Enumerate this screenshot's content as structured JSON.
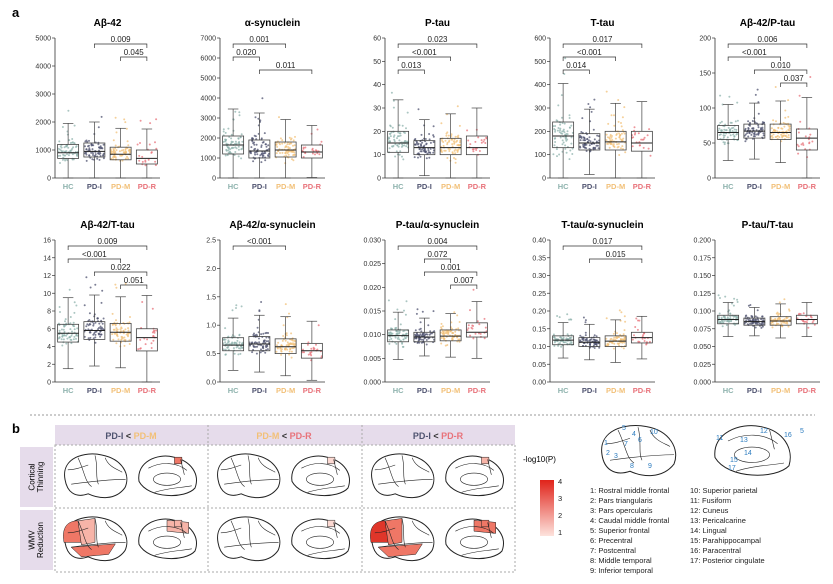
{
  "panel_labels": {
    "a": "a",
    "b": "b"
  },
  "groups": [
    "HC",
    "PD-I",
    "PD-M",
    "PD-R"
  ],
  "colors": {
    "HC": "#8fb3ae",
    "PD-I": "#4f5370",
    "PD-M": "#f2c078",
    "PD-R": "#e8727a"
  },
  "chart_data": [
    {
      "type": "box",
      "title": "Aβ-42",
      "ylim": [
        0,
        5000
      ],
      "ticks": [
        "0",
        "1000",
        "2000",
        "3000",
        "4000",
        "5000"
      ],
      "series": [
        {
          "name": "HC",
          "median": 900,
          "q1": 700,
          "q3": 1200
        },
        {
          "name": "PD-I",
          "median": 950,
          "q1": 750,
          "q3": 1250
        },
        {
          "name": "PD-M",
          "median": 850,
          "q1": 650,
          "q3": 1100
        },
        {
          "name": "PD-R",
          "median": 700,
          "q1": 500,
          "q3": 1000
        }
      ],
      "sig": [
        {
          "label": "0.009",
          "from": 1,
          "to": 3
        },
        {
          "label": "0.045",
          "from": 2,
          "to": 3
        }
      ]
    },
    {
      "type": "box",
      "title": "α-synuclein",
      "ylim": [
        0,
        7000
      ],
      "ticks": [
        "0",
        "1000",
        "2000",
        "3000",
        "4000",
        "5000",
        "6000",
        "7000"
      ],
      "series": [
        {
          "name": "HC",
          "median": 1650,
          "q1": 1200,
          "q3": 2100
        },
        {
          "name": "PD-I",
          "median": 1350,
          "q1": 1000,
          "q3": 1900
        },
        {
          "name": "PD-M",
          "median": 1400,
          "q1": 1050,
          "q3": 1800
        },
        {
          "name": "PD-R",
          "median": 1300,
          "q1": 1000,
          "q3": 1650
        }
      ],
      "sig": [
        {
          "label": "0.001",
          "from": 0,
          "to": 2
        },
        {
          "label": "0.020",
          "from": 0,
          "to": 1
        },
        {
          "label": "0.011",
          "from": 1,
          "to": 3
        }
      ]
    },
    {
      "type": "box",
      "title": "P-tau",
      "ylim": [
        0,
        60
      ],
      "ticks": [
        "0",
        "10",
        "20",
        "30",
        "40",
        "50",
        "60"
      ],
      "series": [
        {
          "name": "HC",
          "median": 15,
          "q1": 11,
          "q3": 20
        },
        {
          "name": "PD-I",
          "median": 13,
          "q1": 10,
          "q3": 16
        },
        {
          "name": "PD-M",
          "median": 13,
          "q1": 10,
          "q3": 17
        },
        {
          "name": "PD-R",
          "median": 13,
          "q1": 10,
          "q3": 18
        }
      ],
      "sig": [
        {
          "label": "0.023",
          "from": 0,
          "to": 3
        },
        {
          "label": "<0.001",
          "from": 0,
          "to": 2
        },
        {
          "label": "0.013",
          "from": 0,
          "to": 1
        }
      ]
    },
    {
      "type": "box",
      "title": "T-tau",
      "ylim": [
        0,
        600
      ],
      "ticks": [
        "0",
        "100",
        "200",
        "300",
        "400",
        "500",
        "600"
      ],
      "series": [
        {
          "name": "HC",
          "median": 180,
          "q1": 130,
          "q3": 240
        },
        {
          "name": "PD-I",
          "median": 150,
          "q1": 120,
          "q3": 190
        },
        {
          "name": "PD-M",
          "median": 155,
          "q1": 120,
          "q3": 200
        },
        {
          "name": "PD-R",
          "median": 150,
          "q1": 115,
          "q3": 200
        }
      ],
      "sig": [
        {
          "label": "0.017",
          "from": 0,
          "to": 3
        },
        {
          "label": "<0.001",
          "from": 0,
          "to": 2
        },
        {
          "label": "0.014",
          "from": 0,
          "to": 1
        }
      ]
    },
    {
      "type": "box",
      "title": "Aβ-42/P-tau",
      "ylim": [
        0,
        200
      ],
      "ticks": [
        "0",
        "50",
        "100",
        "150",
        "200"
      ],
      "series": [
        {
          "name": "HC",
          "median": 65,
          "q1": 55,
          "q3": 75
        },
        {
          "name": "PD-I",
          "median": 67,
          "q1": 57,
          "q3": 77
        },
        {
          "name": "PD-M",
          "median": 65,
          "q1": 55,
          "q3": 77
        },
        {
          "name": "PD-R",
          "median": 57,
          "q1": 40,
          "q3": 70
        }
      ],
      "sig": [
        {
          "label": "0.006",
          "from": 0,
          "to": 3
        },
        {
          "label": "<0.001",
          "from": 0,
          "to": 2
        },
        {
          "label": "0.010",
          "from": 1,
          "to": 3
        },
        {
          "label": "0.037",
          "from": 2,
          "to": 3
        }
      ]
    },
    {
      "type": "box",
      "title": "Aβ-42/T-tau",
      "ylim": [
        0,
        16
      ],
      "ticks": [
        "0",
        "2",
        "4",
        "6",
        "8",
        "10",
        "12",
        "14",
        "16"
      ],
      "series": [
        {
          "name": "HC",
          "median": 5.5,
          "q1": 4.5,
          "q3": 6.5
        },
        {
          "name": "PD-I",
          "median": 5.8,
          "q1": 4.8,
          "q3": 6.8
        },
        {
          "name": "PD-M",
          "median": 5.6,
          "q1": 4.6,
          "q3": 6.6
        },
        {
          "name": "PD-R",
          "median": 5.0,
          "q1": 3.5,
          "q3": 6.0
        }
      ],
      "sig": [
        {
          "label": "0.009",
          "from": 0,
          "to": 3
        },
        {
          "label": "<0.001",
          "from": 0,
          "to": 2
        },
        {
          "label": "0.022",
          "from": 1,
          "to": 3
        },
        {
          "label": "0.051",
          "from": 2,
          "to": 3
        }
      ]
    },
    {
      "type": "box",
      "title": "Aβ-42/α-synuclein",
      "ylim": [
        0,
        2.5
      ],
      "ticks": [
        "0.0",
        "0.5",
        "1.0",
        "1.5",
        "2.0",
        "2.5"
      ],
      "series": [
        {
          "name": "HC",
          "median": 0.65,
          "q1": 0.55,
          "q3": 0.78
        },
        {
          "name": "PD-I",
          "median": 0.67,
          "q1": 0.55,
          "q3": 0.8
        },
        {
          "name": "PD-M",
          "median": 0.62,
          "q1": 0.5,
          "q3": 0.76
        },
        {
          "name": "PD-R",
          "median": 0.55,
          "q1": 0.42,
          "q3": 0.68
        }
      ],
      "sig": [
        {
          "label": "<0.001",
          "from": 0,
          "to": 2
        }
      ]
    },
    {
      "type": "box",
      "title": "P-tau/α-synuclein",
      "ylim": [
        0,
        0.03
      ],
      "ticks": [
        "0.000",
        "0.005",
        "0.010",
        "0.015",
        "0.020",
        "0.025",
        "0.030"
      ],
      "series": [
        {
          "name": "HC",
          "median": 0.0098,
          "q1": 0.0085,
          "q3": 0.011
        },
        {
          "name": "PD-I",
          "median": 0.0095,
          "q1": 0.0085,
          "q3": 0.0105
        },
        {
          "name": "PD-M",
          "median": 0.0097,
          "q1": 0.0087,
          "q3": 0.011
        },
        {
          "name": "PD-R",
          "median": 0.0105,
          "q1": 0.0095,
          "q3": 0.0125
        }
      ],
      "sig": [
        {
          "label": "0.004",
          "from": 0,
          "to": 3
        },
        {
          "label": "0.072",
          "from": 1,
          "to": 2
        },
        {
          "label": "0.001",
          "from": 1,
          "to": 3
        },
        {
          "label": "0.007",
          "from": 2,
          "to": 3
        }
      ]
    },
    {
      "type": "box",
      "title": "T-tau/α-synuclein",
      "ylim": [
        0,
        0.4
      ],
      "ticks": [
        "0.00",
        "0.05",
        "0.10",
        "0.15",
        "0.20",
        "0.25",
        "0.30",
        "0.35",
        "0.40"
      ],
      "series": [
        {
          "name": "HC",
          "median": 0.118,
          "q1": 0.105,
          "q3": 0.13
        },
        {
          "name": "PD-I",
          "median": 0.112,
          "q1": 0.1,
          "q3": 0.125
        },
        {
          "name": "PD-M",
          "median": 0.115,
          "q1": 0.1,
          "q3": 0.13
        },
        {
          "name": "PD-R",
          "median": 0.125,
          "q1": 0.11,
          "q3": 0.14
        }
      ],
      "sig": [
        {
          "label": "0.017",
          "from": 0,
          "to": 3
        },
        {
          "label": "0.015",
          "from": 1,
          "to": 3
        }
      ]
    },
    {
      "type": "box",
      "title": "P-tau/T-tau",
      "ylim": [
        0,
        0.2
      ],
      "ticks": [
        "0.000",
        "0.025",
        "0.050",
        "0.075",
        "0.100",
        "0.125",
        "0.150",
        "0.175",
        "0.200"
      ],
      "series": [
        {
          "name": "HC",
          "median": 0.088,
          "q1": 0.082,
          "q3": 0.094
        },
        {
          "name": "PD-I",
          "median": 0.085,
          "q1": 0.08,
          "q3": 0.09
        },
        {
          "name": "PD-M",
          "median": 0.086,
          "q1": 0.08,
          "q3": 0.092
        },
        {
          "name": "PD-R",
          "median": 0.088,
          "q1": 0.082,
          "q3": 0.094
        }
      ],
      "sig": []
    }
  ],
  "panel_b": {
    "comparisons": [
      {
        "left": "PD-I",
        "sep": "<",
        "right": "PD-M"
      },
      {
        "left": "PD-M",
        "sep": "<",
        "right": "PD-R"
      },
      {
        "left": "PD-I",
        "sep": "<",
        "right": "PD-R"
      }
    ],
    "row_labels": [
      [
        "Cortical",
        "Thinning"
      ],
      [
        "WMV",
        "Reduction"
      ]
    ],
    "colorbar": {
      "label": "-log10(P)",
      "ticks": [
        "4",
        "3",
        "2",
        "1"
      ]
    },
    "regions": [
      "1: Rostral middle frontal",
      "2: Pars triangularis",
      "3: Pars opercularis",
      "4: Caudal middle frontal",
      "5: Superior frontal",
      "6: Precentral",
      "7: Postcentral",
      "8: Middle temporal",
      "9: Inferior temporal",
      "10: Superior parietal",
      "11: Fusiform",
      "12: Cuneus",
      "13: Pericalcarine",
      "14: Lingual",
      "15: Parahippocampal",
      "16: Paracentral",
      "17: Posterior cingulate"
    ],
    "atlas_numbers": [
      "5",
      "4",
      "10",
      "1",
      "7",
      "6",
      "2",
      "3",
      "8",
      "9",
      "11",
      "12",
      "16",
      "13",
      "14",
      "15",
      "17",
      "5"
    ]
  }
}
